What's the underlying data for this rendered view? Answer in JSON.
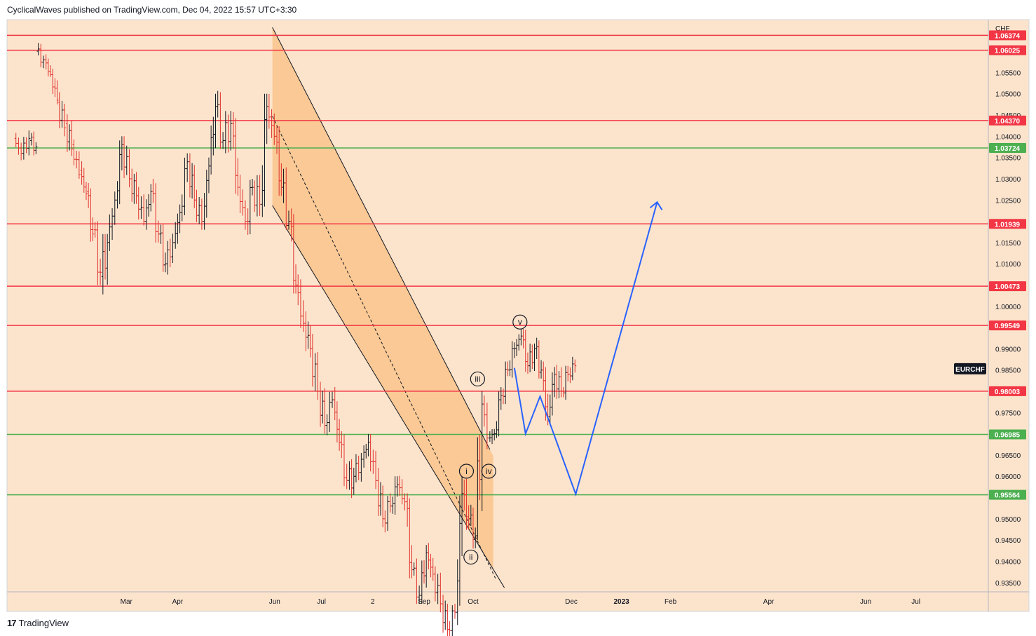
{
  "header": {
    "publisher": "CyclicalWaves published on TradingView.com, Dec 04, 2022 15:57 UTC+3:30"
  },
  "footer": {
    "brand": "TradingView",
    "logo_text": "17"
  },
  "colors": {
    "background": "#fce4cc",
    "channel": "#f9c48b",
    "red_level": "#f23645",
    "green_level": "#4caf50",
    "projection": "#2962ff",
    "candle_up": "#131722",
    "candle_down": "#e0312e"
  },
  "chart_data": {
    "type": "ohlc-bar",
    "symbol": "EURCHF",
    "currency": "CHF",
    "ylim": [
      0.93282,
      1.06744
    ],
    "y_ticks": [
      1.055,
      1.05,
      1.045,
      1.04,
      1.035,
      1.03,
      1.025,
      1.015,
      1.01,
      1.0,
      0.99,
      0.985,
      0.975,
      0.965,
      0.96,
      0.95,
      0.945,
      0.94,
      0.935
    ],
    "y_tick_labels": [
      "1.05500",
      "1.05000",
      "1.04500",
      "1.04000",
      "1.03500",
      "1.03000",
      "1.02500",
      "1.01500",
      "1.01000",
      "1.00000",
      "0.99000",
      "0.98500",
      "0.97500",
      "0.96500",
      "0.96000",
      "0.95000",
      "0.94500",
      "0.94000",
      "0.93500"
    ],
    "x_axis": {
      "weeks_start": -6,
      "weeks_end": 82,
      "labels": [
        {
          "week": 4.7,
          "label": "Mar"
        },
        {
          "week": 9.3,
          "label": "Apr"
        },
        {
          "week": 18.0,
          "label": "Jun"
        },
        {
          "week": 22.2,
          "label": "Jul"
        },
        {
          "week": 26.8,
          "label": "2"
        },
        {
          "week": 31.4,
          "label": "Sep"
        },
        {
          "week": 35.8,
          "label": "Oct"
        },
        {
          "week": 44.6,
          "label": "Dec"
        },
        {
          "week": 49.1,
          "label": "2023"
        },
        {
          "week": 53.5,
          "label": "Feb"
        },
        {
          "week": 62.3,
          "label": "Apr"
        },
        {
          "week": 71.0,
          "label": "Jun"
        },
        {
          "week": 75.5,
          "label": "Jul"
        }
      ]
    },
    "levels": [
      {
        "value": 1.06374,
        "label": "1.06374",
        "color": "red"
      },
      {
        "value": 1.06025,
        "label": "1.06025",
        "color": "red"
      },
      {
        "value": 1.0437,
        "label": "1.04370",
        "color": "red"
      },
      {
        "value": 1.03724,
        "label": "1.03724",
        "color": "green"
      },
      {
        "value": 1.01939,
        "label": "1.01939",
        "color": "red"
      },
      {
        "value": 1.00473,
        "label": "1.00473",
        "color": "red"
      },
      {
        "value": 0.99549,
        "label": "0.99549",
        "color": "red"
      },
      {
        "value": 0.98003,
        "label": "0.98003",
        "color": "red"
      },
      {
        "value": 0.96985,
        "label": "0.96985",
        "color": "green"
      },
      {
        "value": 0.95564,
        "label": "0.95564",
        "color": "green"
      }
    ],
    "channel": {
      "upper": [
        [
          17.8,
          1.0656
        ],
        [
          37.3,
          0.9663
        ]
      ],
      "lower": [
        [
          17.8,
          1.0237
        ],
        [
          38.6,
          0.9338
        ]
      ],
      "mid": [
        [
          17.8,
          1.0447
        ],
        [
          37.8,
          0.936
        ]
      ],
      "x_end": 37.6
    },
    "projection": [
      [
        39.5,
        0.9855
      ],
      [
        40.5,
        0.97
      ],
      [
        41.8,
        0.9788
      ],
      [
        45.0,
        0.9558
      ],
      [
        52.3,
        1.0245
      ]
    ],
    "wave_labels": [
      {
        "label": "i",
        "week": 35.2,
        "value": 0.9612
      },
      {
        "label": "ii",
        "week": 35.6,
        "value": 0.941
      },
      {
        "label": "iii",
        "week": 36.2,
        "value": 0.9829
      },
      {
        "label": "iv",
        "week": 37.2,
        "value": 0.9612
      },
      {
        "label": "v",
        "week": 40.0,
        "value": 0.9963
      }
    ],
    "price_label": {
      "text": "EURCHF",
      "value": 0.9853
    },
    "bars_weekly": [
      [
        -5.2,
        1.0395,
        1.0408,
        1.033,
        1.036
      ],
      [
        -4.5,
        1.036,
        1.043,
        1.0345,
        1.0395
      ],
      [
        -3.8,
        1.039,
        1.0415,
        1.0355,
        1.0375
      ],
      [
        -3.2,
        1.06,
        1.062,
        1.0555,
        1.058
      ],
      [
        -2.5,
        1.058,
        1.061,
        1.054,
        1.0545
      ],
      [
        -1.9,
        1.0545,
        1.057,
        1.0475,
        1.0485
      ],
      [
        -1.3,
        1.048,
        1.051,
        1.04,
        1.042
      ],
      [
        -0.6,
        1.043,
        1.046,
        1.035,
        1.037
      ],
      [
        0.0,
        1.038,
        1.0395,
        1.03,
        1.031
      ],
      [
        0.7,
        1.032,
        1.035,
        1.025,
        1.0265
      ],
      [
        1.3,
        1.027,
        1.029,
        1.015,
        1.017
      ],
      [
        1.9,
        1.018,
        1.02,
        1.005,
        1.008
      ],
      [
        2.6,
        1.007,
        1.017,
        0.997,
        1.015
      ],
      [
        3.2,
        1.015,
        1.027,
        1.013,
        1.025
      ],
      [
        3.9,
        1.025,
        1.04,
        1.023,
        1.038
      ],
      [
        4.5,
        1.038,
        1.04,
        1.028,
        1.03
      ],
      [
        5.2,
        1.03,
        1.035,
        1.024,
        1.026
      ],
      [
        5.8,
        1.026,
        1.033,
        1.019,
        1.02
      ],
      [
        6.5,
        1.02,
        1.029,
        1.018,
        1.027
      ],
      [
        7.1,
        1.027,
        1.03,
        1.015,
        1.017
      ],
      [
        7.8,
        1.017,
        1.02,
        1.008,
        1.01
      ],
      [
        8.4,
        1.01,
        1.018,
        1.006,
        1.015
      ],
      [
        9.1,
        1.015,
        1.024,
        1.012,
        1.022
      ],
      [
        9.7,
        1.022,
        1.036,
        1.02,
        1.034
      ],
      [
        10.4,
        1.034,
        1.036,
        1.023,
        1.025
      ],
      [
        11.0,
        1.025,
        1.029,
        1.018,
        1.02
      ],
      [
        11.7,
        1.02,
        1.035,
        1.018,
        1.033
      ],
      [
        12.3,
        1.033,
        1.05,
        1.031,
        1.047
      ],
      [
        12.9,
        1.047,
        1.052,
        1.037,
        1.039
      ],
      [
        13.6,
        1.039,
        1.05,
        1.036,
        1.043
      ],
      [
        14.3,
        1.043,
        1.046,
        1.026,
        1.028
      ],
      [
        14.9,
        1.028,
        1.032,
        1.018,
        1.02
      ],
      [
        15.6,
        1.02,
        1.03,
        1.015,
        1.028
      ],
      [
        16.2,
        1.028,
        1.033,
        1.02,
        1.024
      ],
      [
        16.9,
        1.024,
        1.05,
        1.021,
        1.047
      ],
      [
        17.5,
        1.047,
        1.051,
        1.037,
        1.04
      ],
      [
        18.2,
        1.04,
        1.045,
        1.026,
        1.028
      ],
      [
        18.8,
        1.028,
        1.035,
        1.018,
        1.02
      ],
      [
        19.5,
        1.02,
        1.023,
        1.003,
        1.005
      ],
      [
        20.1,
        1.005,
        1.011,
        0.994,
        0.996
      ],
      [
        20.8,
        0.996,
        1.003,
        0.988,
        0.99
      ],
      [
        21.4,
        0.99,
        0.994,
        0.978,
        0.98
      ],
      [
        22.1,
        0.98,
        0.984,
        0.97,
        0.972
      ],
      [
        22.7,
        0.972,
        0.98,
        0.969,
        0.978
      ],
      [
        23.4,
        0.978,
        0.981,
        0.966,
        0.968
      ],
      [
        24.0,
        0.968,
        0.972,
        0.957,
        0.959
      ],
      [
        24.7,
        0.959,
        0.964,
        0.953,
        0.96
      ],
      [
        25.3,
        0.96,
        0.966,
        0.956,
        0.964
      ],
      [
        26.0,
        0.964,
        0.97,
        0.961,
        0.968
      ],
      [
        26.6,
        0.968,
        0.97,
        0.957,
        0.959
      ],
      [
        27.3,
        0.959,
        0.962,
        0.948,
        0.95
      ],
      [
        27.9,
        0.95,
        0.956,
        0.946,
        0.953
      ],
      [
        28.6,
        0.953,
        0.96,
        0.948,
        0.958
      ],
      [
        29.2,
        0.958,
        0.962,
        0.952,
        0.954
      ],
      [
        29.9,
        0.954,
        0.956,
        0.936,
        0.938
      ],
      [
        30.5,
        0.938,
        0.941,
        0.93,
        0.932
      ],
      [
        31.2,
        0.932,
        0.944,
        0.93,
        0.942
      ],
      [
        31.8,
        0.942,
        0.946,
        0.935,
        0.937
      ],
      [
        32.4,
        0.937,
        0.942,
        0.928,
        0.93
      ],
      [
        33.1,
        0.93,
        0.933,
        0.922,
        0.924
      ],
      [
        33.7,
        0.924,
        0.93,
        0.921,
        0.928
      ],
      [
        34.4,
        0.928,
        0.96,
        0.925,
        0.956
      ],
      [
        35.0,
        0.956,
        0.963,
        0.946,
        0.95
      ],
      [
        35.6,
        0.95,
        0.954,
        0.943,
        0.946
      ],
      [
        36.2,
        0.946,
        0.98,
        0.945,
        0.977
      ],
      [
        36.8,
        0.977,
        0.979,
        0.966,
        0.969
      ],
      [
        37.3,
        0.969,
        0.972,
        0.965,
        0.97
      ],
      [
        37.9,
        0.97,
        0.981,
        0.969,
        0.979
      ],
      [
        38.5,
        0.979,
        0.987,
        0.977,
        0.985
      ],
      [
        39.1,
        0.985,
        0.993,
        0.983,
        0.99
      ],
      [
        39.7,
        0.99,
        0.996,
        0.988,
        0.993
      ],
      [
        40.3,
        0.993,
        0.995,
        0.984,
        0.986
      ],
      [
        40.9,
        0.986,
        0.993,
        0.984,
        0.99
      ],
      [
        41.5,
        0.99,
        0.994,
        0.983,
        0.985
      ],
      [
        42.1,
        0.985,
        0.987,
        0.972,
        0.974
      ],
      [
        42.7,
        0.974,
        0.986,
        0.972,
        0.984
      ],
      [
        43.3,
        0.984,
        0.988,
        0.977,
        0.98
      ],
      [
        43.9,
        0.98,
        0.986,
        0.978,
        0.984
      ],
      [
        44.5,
        0.984,
        0.989,
        0.981,
        0.986
      ]
    ]
  }
}
